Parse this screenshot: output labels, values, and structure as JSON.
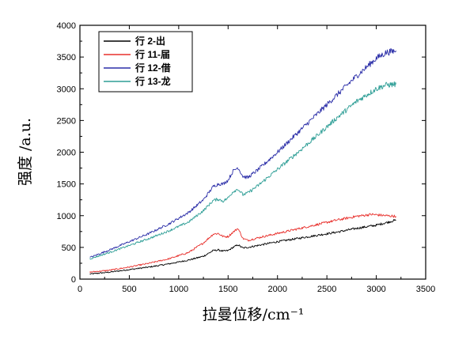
{
  "chart_data": {
    "type": "line",
    "title": "",
    "xlabel": "拉曼位移/cm⁻¹",
    "ylabel": "强度 /a.u.",
    "xlim": [
      0,
      3500
    ],
    "ylim": [
      0,
      4000
    ],
    "xticks": [
      0,
      500,
      1000,
      1500,
      2000,
      2500,
      3000,
      3500
    ],
    "yticks": [
      0,
      500,
      1000,
      1500,
      2000,
      2500,
      3000,
      3500,
      4000
    ],
    "grid": false,
    "legend_position": "top-left",
    "series": [
      {
        "name": "行 2-出",
        "color": "#000000",
        "x": [
          100,
          300,
          500,
          700,
          900,
          1100,
          1250,
          1350,
          1400,
          1450,
          1500,
          1550,
          1600,
          1650,
          1700,
          1800,
          2000,
          2200,
          2400,
          2600,
          2800,
          3000,
          3200
        ],
        "y": [
          80,
          110,
          150,
          190,
          240,
          300,
          360,
          450,
          460,
          440,
          450,
          500,
          540,
          490,
          500,
          530,
          590,
          640,
          690,
          740,
          800,
          850,
          930
        ]
      },
      {
        "name": "行 11-届",
        "color": "#e8302c",
        "x": [
          100,
          300,
          500,
          700,
          900,
          1100,
          1250,
          1350,
          1400,
          1450,
          1500,
          1550,
          1600,
          1650,
          1700,
          1800,
          2000,
          2200,
          2400,
          2600,
          2800,
          2950,
          3100,
          3200
        ],
        "y": [
          110,
          140,
          190,
          250,
          320,
          420,
          570,
          710,
          720,
          670,
          670,
          740,
          800,
          640,
          610,
          650,
          720,
          790,
          860,
          930,
          990,
          1020,
          1000,
          990
        ]
      },
      {
        "name": "行 12-借",
        "color": "#2b2ea8",
        "x": [
          100,
          300,
          500,
          700,
          900,
          1100,
          1250,
          1350,
          1400,
          1450,
          1500,
          1550,
          1600,
          1650,
          1700,
          1800,
          2000,
          2200,
          2400,
          2600,
          2800,
          3000,
          3100,
          3200
        ],
        "y": [
          340,
          460,
          590,
          720,
          870,
          1050,
          1250,
          1460,
          1500,
          1500,
          1560,
          1700,
          1760,
          1620,
          1600,
          1720,
          2000,
          2300,
          2600,
          2900,
          3200,
          3480,
          3570,
          3600
        ]
      },
      {
        "name": "行 13-龙",
        "color": "#2e9e96",
        "x": [
          100,
          300,
          500,
          700,
          900,
          1100,
          1250,
          1350,
          1400,
          1450,
          1500,
          1550,
          1600,
          1650,
          1700,
          1800,
          2000,
          2200,
          2400,
          2600,
          2800,
          3000,
          3100,
          3200
        ],
        "y": [
          320,
          420,
          530,
          640,
          760,
          900,
          1080,
          1240,
          1260,
          1230,
          1280,
          1380,
          1420,
          1330,
          1360,
          1470,
          1730,
          1990,
          2260,
          2540,
          2800,
          3000,
          3060,
          3070
        ]
      }
    ]
  }
}
